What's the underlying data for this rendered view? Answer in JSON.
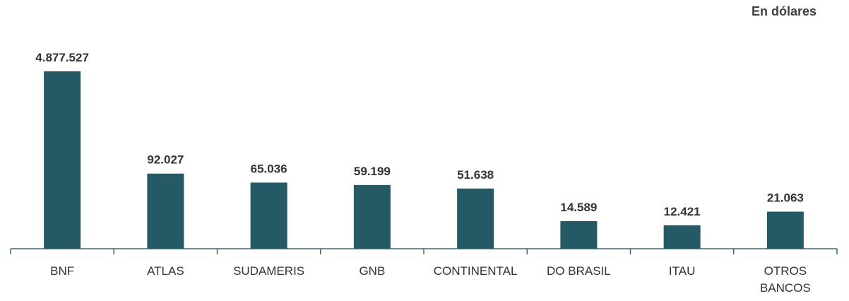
{
  "chart_data": {
    "type": "bar",
    "annotation": "En dólares",
    "categories": [
      "BNF",
      "ATLAS",
      "SUDAMERIS",
      "GNB",
      "CONTINENTAL",
      "DO BRASIL",
      "ITAU",
      "OTROS BANCOS"
    ],
    "values": [
      4877527,
      92027,
      65036,
      59199,
      51638,
      14589,
      12421,
      21063
    ],
    "value_labels": [
      "4.877.527",
      "92.027",
      "65.036",
      "59.199",
      "51.638",
      "14.589",
      "12.421",
      "21.063"
    ],
    "color": "#245a66",
    "log_scale": true,
    "ylim": [
      5000,
      5000000
    ]
  }
}
